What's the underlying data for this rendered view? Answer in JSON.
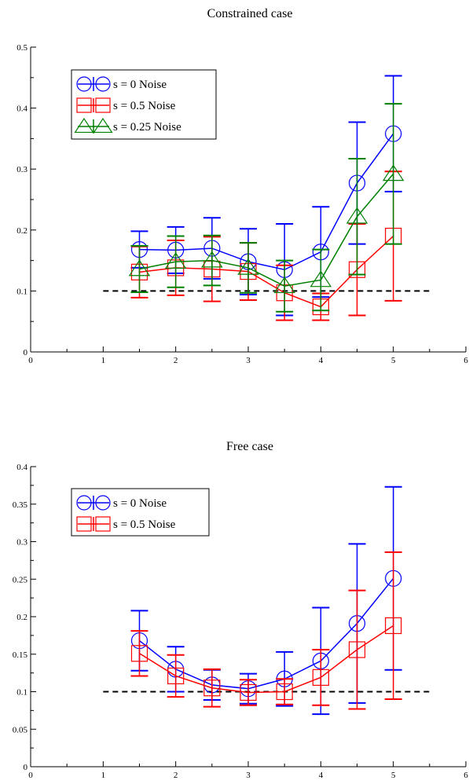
{
  "chart_data": [
    {
      "type": "line",
      "title": "Constrained case",
      "xlabel": "",
      "ylabel": "",
      "xlim": [
        0,
        6
      ],
      "ylim": [
        0,
        0.5
      ],
      "xticks": [
        "0",
        "1",
        "2",
        "3",
        "4",
        "5",
        "6"
      ],
      "yticks": [
        "0",
        "0.1",
        "0.2",
        "0.3",
        "0.4",
        "0.5"
      ],
      "grid": false,
      "legend_position": "top-left",
      "reference_line": {
        "y": 0.1,
        "x": [
          1,
          5.5
        ],
        "color": "#000000",
        "style": "dashed"
      },
      "series": [
        {
          "name": "s = 0 Noise",
          "color": "#0000ff",
          "marker": "circle",
          "x": [
            1.5,
            2,
            2.5,
            3,
            3.5,
            4,
            4.5,
            5
          ],
          "y": [
            0.168,
            0.167,
            0.17,
            0.148,
            0.135,
            0.164,
            0.277,
            0.358
          ],
          "err": [
            0.03,
            0.038,
            0.05,
            0.054,
            0.075,
            0.074,
            0.1,
            0.095
          ]
        },
        {
          "name": "s = 0.5 Noise",
          "color": "#ff0000",
          "marker": "square",
          "x": [
            1.5,
            2,
            2.5,
            3,
            3.5,
            4,
            4.5,
            5
          ],
          "y": [
            0.131,
            0.138,
            0.136,
            0.132,
            0.097,
            0.074,
            0.135,
            0.19
          ],
          "err": [
            0.042,
            0.045,
            0.053,
            0.047,
            0.045,
            0.022,
            0.075,
            0.106
          ]
        },
        {
          "name": "s = 0.25 Noise",
          "color": "#008000",
          "marker": "triangle",
          "x": [
            1.5,
            2,
            2.5,
            3,
            3.5,
            4,
            4.5,
            5
          ],
          "y": [
            0.136,
            0.148,
            0.15,
            0.138,
            0.108,
            0.118,
            0.222,
            0.292
          ],
          "err": [
            0.038,
            0.042,
            0.041,
            0.041,
            0.042,
            0.05,
            0.095,
            0.115
          ]
        }
      ]
    },
    {
      "type": "line",
      "title": "Free case",
      "xlabel": "",
      "ylabel": "",
      "xlim": [
        0,
        6
      ],
      "ylim": [
        0,
        0.4
      ],
      "xticks": [
        "0",
        "1",
        "2",
        "3",
        "4",
        "5",
        "6"
      ],
      "yticks": [
        "0",
        "0.05",
        "0.1",
        "0.15",
        "0.2",
        "0.25",
        "0.3",
        "0.35",
        "0.4"
      ],
      "grid": false,
      "legend_position": "top-left",
      "reference_line": {
        "y": 0.1,
        "x": [
          1,
          5.5
        ],
        "color": "#000000",
        "style": "dashed"
      },
      "series": [
        {
          "name": "s = 0 Noise",
          "color": "#0000ff",
          "marker": "circle",
          "x": [
            1.5,
            2,
            2.5,
            3,
            3.5,
            4,
            4.5,
            5
          ],
          "y": [
            0.168,
            0.13,
            0.109,
            0.104,
            0.117,
            0.141,
            0.191,
            0.251
          ],
          "err": [
            0.04,
            0.03,
            0.02,
            0.02,
            0.036,
            0.071,
            0.106,
            0.122
          ]
        },
        {
          "name": "s = 0.5 Noise",
          "color": "#ff0000",
          "marker": "square",
          "x": [
            1.5,
            2,
            2.5,
            3,
            3.5,
            4,
            4.5,
            5
          ],
          "y": [
            0.151,
            0.121,
            0.105,
            0.099,
            0.1,
            0.119,
            0.156,
            0.188
          ],
          "err": [
            0.03,
            0.028,
            0.025,
            0.017,
            0.017,
            0.037,
            0.079,
            0.098
          ]
        }
      ]
    }
  ]
}
